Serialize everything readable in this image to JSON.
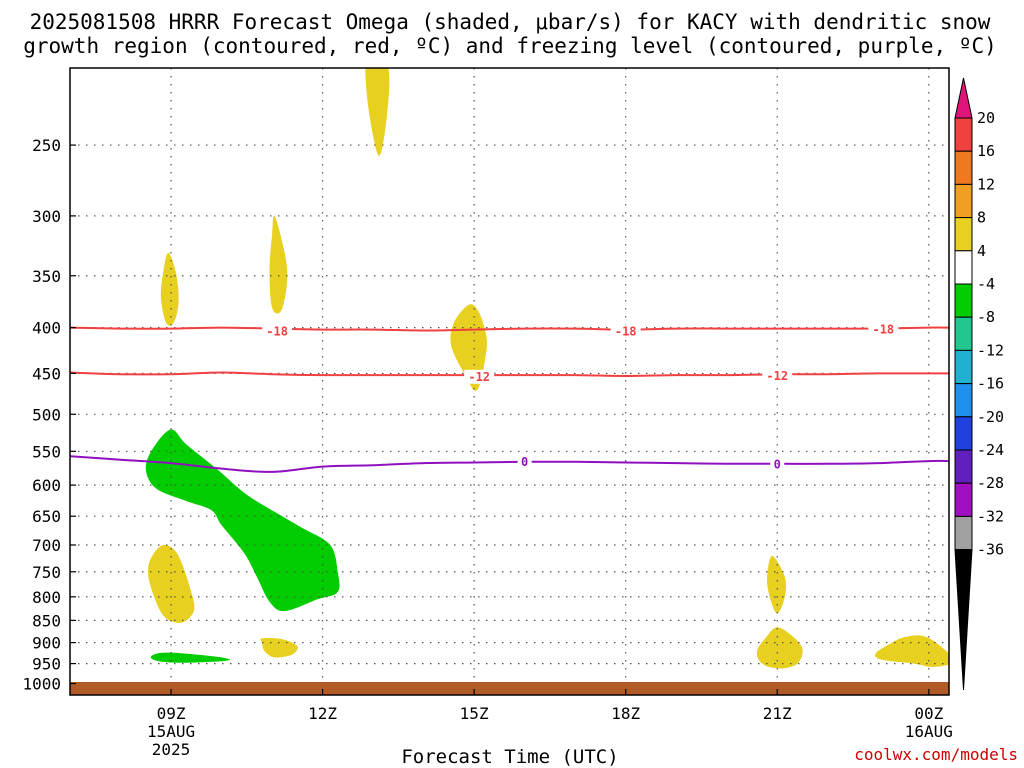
{
  "title_line1": "2025081508 HRRR Forecast Omega (shaded, μbar/s) for KACY with dendritic snow",
  "title_line2": "growth region (contoured, red, ºC) and freezing level (contoured, purple, ºC)",
  "xlabel": "Forecast Time (UTC)",
  "credit": "coolwx.com/models",
  "chart_data": {
    "type": "heatmap",
    "x_unit": "hours after 2025-08-15 06Z",
    "xlim": [
      7,
      24.4
    ],
    "x_ticks": [
      {
        "x": 9,
        "l1": "09Z",
        "l2": "15AUG",
        "l3": "2025"
      },
      {
        "x": 12,
        "l1": "12Z",
        "l2": "",
        "l3": ""
      },
      {
        "x": 15,
        "l1": "15Z",
        "l2": "",
        "l3": ""
      },
      {
        "x": 18,
        "l1": "18Z",
        "l2": "",
        "l3": ""
      },
      {
        "x": 21,
        "l1": "21Z",
        "l2": "",
        "l3": ""
      },
      {
        "x": 24,
        "l1": "00Z",
        "l2": "16AUG",
        "l3": ""
      }
    ],
    "y_unit": "hPa",
    "yscale": "log (reversed)",
    "ylim": [
      1030,
      205
    ],
    "y_ticks": [
      250,
      300,
      350,
      400,
      450,
      500,
      550,
      600,
      650,
      700,
      750,
      800,
      850,
      900,
      950,
      1000
    ],
    "grid": true,
    "colorbar": {
      "ticks": [
        "20",
        "16",
        "12",
        "8",
        "4",
        "-4",
        "-8",
        "-12",
        "-16",
        "-20",
        "-24",
        "-28",
        "-32",
        "-36"
      ],
      "bins": [
        {
          "range": ">20",
          "color": "#e0157a"
        },
        {
          "range": "16 to 20",
          "color": "#f04040"
        },
        {
          "range": "12 to 16",
          "color": "#f07820"
        },
        {
          "range": "8 to 12",
          "color": "#f0a020"
        },
        {
          "range": "4 to 8",
          "color": "#e8d020"
        },
        {
          "range": "-4 to 4",
          "color": "#ffffff"
        },
        {
          "range": "-8 to -4",
          "color": "#00cc00"
        },
        {
          "range": "-12 to -8",
          "color": "#20c890"
        },
        {
          "range": "-16 to -12",
          "color": "#20b0d0"
        },
        {
          "range": "-20 to -16",
          "color": "#2090f0"
        },
        {
          "range": "-24 to -20",
          "color": "#2040e0"
        },
        {
          "range": "-28 to -24",
          "color": "#6020c0"
        },
        {
          "range": "-32 to -28",
          "color": "#a010c0"
        },
        {
          "range": "-36 to -32",
          "color": "#a0a0a0"
        },
        {
          "range": "<-36",
          "color": "#000000"
        }
      ]
    },
    "contours": [
      {
        "name": "-18",
        "color": "#f04040",
        "points": [
          [
            7,
            400
          ],
          [
            8,
            401
          ],
          [
            9,
            401
          ],
          [
            10,
            400
          ],
          [
            11,
            401
          ],
          [
            12,
            402
          ],
          [
            13,
            402
          ],
          [
            14,
            403
          ],
          [
            15,
            402
          ],
          [
            16,
            401
          ],
          [
            17,
            401
          ],
          [
            18,
            402
          ],
          [
            19,
            401
          ],
          [
            20,
            401
          ],
          [
            21,
            401
          ],
          [
            22,
            401
          ],
          [
            23,
            401
          ],
          [
            24,
            400
          ],
          [
            24.4,
            400
          ]
        ],
        "labels": [
          [
            11.1,
            404
          ],
          [
            18,
            404
          ],
          [
            23.1,
            402
          ]
        ]
      },
      {
        "name": "-12",
        "color": "#f04040",
        "points": [
          [
            7,
            449
          ],
          [
            8,
            451
          ],
          [
            9,
            451
          ],
          [
            10,
            449
          ],
          [
            11,
            451
          ],
          [
            12,
            452
          ],
          [
            13,
            452
          ],
          [
            14,
            452
          ],
          [
            15,
            452
          ],
          [
            16,
            452
          ],
          [
            17,
            452
          ],
          [
            18,
            453
          ],
          [
            19,
            452
          ],
          [
            20,
            452
          ],
          [
            21,
            451
          ],
          [
            22,
            451
          ],
          [
            23,
            450
          ],
          [
            24,
            450
          ],
          [
            24.4,
            450
          ]
        ],
        "labels": [
          [
            15.1,
            454
          ],
          [
            21,
            453
          ]
        ]
      },
      {
        "name": "0",
        "color": "#9010c0",
        "points": [
          [
            7,
            557
          ],
          [
            8,
            562
          ],
          [
            9,
            567
          ],
          [
            10,
            575
          ],
          [
            11,
            580
          ],
          [
            12,
            572
          ],
          [
            13,
            570
          ],
          [
            14,
            567
          ],
          [
            15,
            566
          ],
          [
            16,
            565
          ],
          [
            17,
            565
          ],
          [
            18,
            566
          ],
          [
            19,
            567
          ],
          [
            20,
            568
          ],
          [
            21,
            568
          ],
          [
            22,
            568
          ],
          [
            23,
            567
          ],
          [
            24,
            564
          ],
          [
            24.4,
            564
          ]
        ],
        "labels": [
          [
            16,
            565
          ],
          [
            21,
            569
          ]
        ]
      }
    ],
    "shaded_regions": [
      {
        "value": "4 to 8",
        "color": "#e8d020",
        "points": [
          [
            13,
            205
          ],
          [
            13.3,
            205
          ],
          [
            13.28,
            230
          ],
          [
            13.12,
            257
          ],
          [
            12.92,
            230
          ],
          [
            12.85,
            205
          ]
        ]
      },
      {
        "value": "4 to 8",
        "color": "#e8d020",
        "points": [
          [
            8.95,
            330
          ],
          [
            9.1,
            348
          ],
          [
            9.15,
            375
          ],
          [
            9.05,
            395
          ],
          [
            8.9,
            395
          ],
          [
            8.8,
            370
          ],
          [
            8.85,
            345
          ]
        ]
      },
      {
        "value": "4 to 8",
        "color": "#e8d020",
        "points": [
          [
            11.05,
            300
          ],
          [
            11.25,
            330
          ],
          [
            11.3,
            355
          ],
          [
            11.18,
            383
          ],
          [
            11.0,
            380
          ],
          [
            10.95,
            345
          ],
          [
            11.0,
            315
          ]
        ]
      },
      {
        "value": "4 to 8",
        "color": "#e8d020",
        "points": [
          [
            14.9,
            377
          ],
          [
            15.1,
            385
          ],
          [
            15.25,
            412
          ],
          [
            15.2,
            440
          ],
          [
            15.1,
            465
          ],
          [
            15.0,
            470
          ],
          [
            14.85,
            455
          ],
          [
            14.55,
            420
          ],
          [
            14.6,
            395
          ]
        ]
      },
      {
        "value": "4 to 8",
        "color": "#e8d020",
        "points": [
          [
            8.9,
            700
          ],
          [
            9.15,
            720
          ],
          [
            9.4,
            790
          ],
          [
            9.45,
            830
          ],
          [
            9.2,
            855
          ],
          [
            8.85,
            840
          ],
          [
            8.6,
            780
          ],
          [
            8.55,
            740
          ],
          [
            8.7,
            710
          ]
        ]
      },
      {
        "value": "4 to 8",
        "color": "#e8d020",
        "points": [
          [
            20.9,
            720
          ],
          [
            21.15,
            760
          ],
          [
            21.15,
            800
          ],
          [
            21.0,
            835
          ],
          [
            20.85,
            800
          ],
          [
            20.8,
            760
          ]
        ]
      },
      {
        "value": "4 to 8",
        "color": "#e8d020",
        "points": [
          [
            10.8,
            890
          ],
          [
            11.2,
            892
          ],
          [
            11.5,
            908
          ],
          [
            11.4,
            928
          ],
          [
            11.05,
            935
          ],
          [
            10.85,
            920
          ],
          [
            10.8,
            900
          ]
        ]
      },
      {
        "value": "4 to 8",
        "color": "#e8d020",
        "points": [
          [
            21.0,
            865
          ],
          [
            21.3,
            885
          ],
          [
            21.5,
            915
          ],
          [
            21.4,
            950
          ],
          [
            21.05,
            962
          ],
          [
            20.7,
            950
          ],
          [
            20.6,
            920
          ],
          [
            20.8,
            885
          ]
        ]
      },
      {
        "value": "4 to 8",
        "color": "#e8d020",
        "points": [
          [
            23.5,
            888
          ],
          [
            23.9,
            885
          ],
          [
            24.25,
            910
          ],
          [
            24.5,
            945
          ],
          [
            24.1,
            958
          ],
          [
            23.7,
            950
          ],
          [
            23.05,
            940
          ],
          [
            22.95,
            925
          ],
          [
            23.2,
            905
          ]
        ]
      },
      {
        "value": "-8 to -4",
        "color": "#00cc00",
        "points": [
          [
            9.0,
            520
          ],
          [
            9.3,
            540
          ],
          [
            9.9,
            575
          ],
          [
            10.5,
            615
          ],
          [
            11.2,
            650
          ],
          [
            11.6,
            670
          ],
          [
            12.15,
            700
          ],
          [
            12.3,
            750
          ],
          [
            12.3,
            790
          ],
          [
            11.9,
            805
          ],
          [
            11.25,
            830
          ],
          [
            10.95,
            810
          ],
          [
            10.7,
            760
          ],
          [
            10.45,
            715
          ],
          [
            10.0,
            665
          ],
          [
            9.8,
            640
          ],
          [
            9.3,
            625
          ],
          [
            8.7,
            605
          ],
          [
            8.5,
            575
          ],
          [
            8.65,
            545
          ]
        ]
      },
      {
        "value": "-8 to -4",
        "color": "#00cc00",
        "points": [
          [
            8.75,
            925
          ],
          [
            9.2,
            925
          ],
          [
            10.0,
            935
          ],
          [
            10.1,
            943
          ],
          [
            9.2,
            948
          ],
          [
            8.75,
            944
          ],
          [
            8.6,
            935
          ]
        ]
      }
    ],
    "surface_strip": {
      "color": "#b05a28",
      "description": "below ground"
    }
  }
}
